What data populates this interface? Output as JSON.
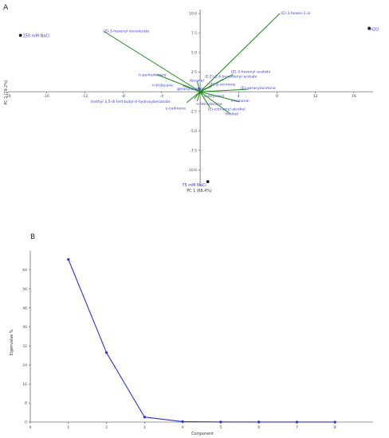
{
  "figure": {
    "panel_a_label": "A",
    "panel_b_label": "B"
  },
  "chart_data": [
    {
      "type": "scatter",
      "subtype": "biplot",
      "xlabel": "PC 1 (68.4%)",
      "ylabel": "PC 2 (29.2%)",
      "xlim": [
        -20,
        18
      ],
      "ylim": [
        -12,
        10.5
      ],
      "x_ticks": [
        -20,
        -16,
        -12,
        -8,
        -4,
        4,
        8,
        12,
        16
      ],
      "y_ticks": [
        -10.0,
        -7.5,
        -5.0,
        -2.5,
        2.5,
        5.0,
        7.5,
        10.0
      ],
      "colors": {
        "vector": "#1a8a1a",
        "label": "#3a3ad0",
        "point": "#111111",
        "axis": "#333333"
      },
      "scores": [
        {
          "label": "150 mM NaCl",
          "x": -18.7,
          "y": 7.2
        },
        {
          "label": "H2O",
          "x": 17.6,
          "y": 8.1
        },
        {
          "label": "75 mM NaCl",
          "x": 0.8,
          "y": -11.5
        }
      ],
      "loadings": [
        {
          "label": "(E)-3-hexen-1-ol",
          "x": 8.3,
          "y": 10.0,
          "lx": 8.4,
          "ly": 9.9
        },
        {
          "label": "(Z)-3-hexenyl isovalerate",
          "x": -10.0,
          "y": 7.7,
          "lx": -10.1,
          "ly": 7.6
        },
        {
          "label": "n-pentadecane",
          "x": -4.5,
          "y": 2.2,
          "lx": -6.4,
          "ly": 2.0
        },
        {
          "label": "(Z)-3-hexenyl acetate",
          "x": 3.4,
          "y": 2.2,
          "lx": 3.2,
          "ly": 2.4
        },
        {
          "label": "(E,E)-2,4-hexadienyl acetate",
          "x": 2.4,
          "y": 1.6,
          "lx": 0.5,
          "ly": 1.8
        },
        {
          "label": "decanal",
          "x": -0.3,
          "y": 1.3,
          "lx": -1.1,
          "ly": 1.3
        },
        {
          "label": "n-tridecane",
          "x": -1.8,
          "y": 0.8,
          "lx": -5.0,
          "ly": 0.7
        },
        {
          "label": "geranylacetate",
          "x": -0.2,
          "y": 0.5,
          "lx": -2.4,
          "ly": 0.2
        },
        {
          "label": "(E)-β-ocimene",
          "x": 1.2,
          "y": 0.7,
          "lx": 1.0,
          "ly": 0.8
        },
        {
          "label": "(E)-geranylacetone",
          "x": 4.9,
          "y": 0.3,
          "lx": 4.2,
          "ly": 0.3
        },
        {
          "label": "α-terpineol",
          "x": 0.3,
          "y": -0.6,
          "lx": 0.4,
          "ly": -0.7
        },
        {
          "label": "methyl 3,5-di-tert-butyl-4-hydroxybenzoate",
          "x": -0.6,
          "y": -0.9,
          "lx": -11.4,
          "ly": -1.4
        },
        {
          "label": "n-nonanal",
          "x": 4.1,
          "y": -1.3,
          "lx": 3.2,
          "ly": -1.3
        },
        {
          "label": "n-tetradecane",
          "x": -0.3,
          "y": -1.2,
          "lx": -0.4,
          "ly": -1.7
        },
        {
          "label": "γ-cadinene",
          "x": -1.4,
          "y": -1.4,
          "lx": -3.6,
          "ly": -2.3
        },
        {
          "label": "(E)-cinnamyl alcohol",
          "x": 1.0,
          "y": -2.0,
          "lx": 0.8,
          "ly": -2.4
        },
        {
          "label": "linalool",
          "x": 3.1,
          "y": -2.8,
          "lx": 2.6,
          "ly": -3.0
        }
      ]
    },
    {
      "type": "line",
      "xlabel": "Component",
      "ylabel": "Eigenvalue %",
      "xlim": [
        0,
        9
      ],
      "ylim": [
        0,
        72
      ],
      "x_ticks": [
        0,
        1,
        2,
        3,
        4,
        5,
        6,
        7,
        8
      ],
      "y_ticks": [
        0,
        8,
        16,
        24,
        32,
        40,
        48,
        56,
        64
      ],
      "x": [
        1,
        2,
        3,
        4,
        5,
        6,
        7,
        8
      ],
      "values": [
        68.4,
        29.2,
        2.1,
        0.2,
        0.05,
        0.03,
        0.02,
        0.01
      ],
      "colors": {
        "line": "#2f2fd8",
        "axis": "#333333"
      }
    }
  ]
}
